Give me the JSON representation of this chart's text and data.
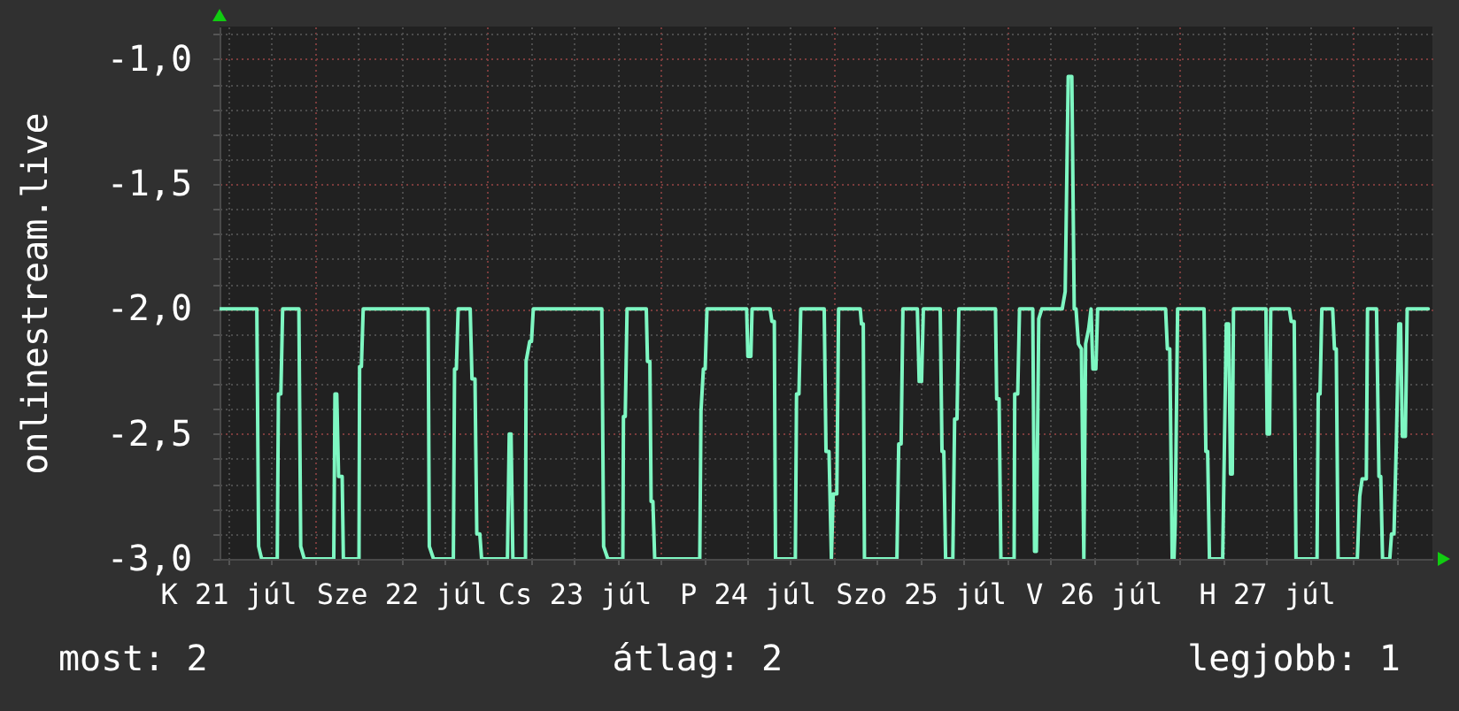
{
  "chart_data": {
    "type": "line",
    "ylabel": "onlinestream.live",
    "annotations": [
      "most: 2",
      "átlag: 2",
      "legjobb: 1"
    ],
    "x": [
      "--07-21T10:55",
      "--07-21T16:00",
      "--07-21T16:15",
      "--07-21T16:40",
      "--07-21T18:50",
      "--07-21T19:00",
      "--07-21T19:20",
      "--07-21T19:35",
      "--07-21T21:50",
      "--07-21T22:05",
      "--07-21T22:35",
      "--07-22T02:40",
      "--07-22T02:50",
      "--07-22T03:05",
      "--07-22T03:20",
      "--07-22T03:50",
      "--07-22T04:00",
      "--07-22T06:10",
      "--07-22T06:15",
      "--07-22T06:30",
      "--07-22T06:45",
      "--07-22T15:45",
      "--07-22T15:55",
      "--07-22T16:30",
      "--07-22T19:15",
      "--07-22T19:25",
      "--07-22T19:40",
      "--07-22T19:55",
      "--07-22T21:35",
      "--07-22T21:50",
      "--07-22T22:15",
      "--07-22T22:30",
      "--07-22T22:55",
      "--07-22T23:10",
      "--07-23T02:45",
      "--07-23T03:00",
      "--07-23T03:15",
      "--07-23T03:30",
      "--07-23T05:15",
      "--07-23T05:20",
      "--07-23T05:50",
      "--07-23T06:05",
      "--07-23T06:20",
      "--07-23T15:50",
      "--07-23T16:05",
      "--07-23T16:40",
      "--07-23T18:45",
      "--07-23T18:50",
      "--07-23T19:05",
      "--07-23T19:20",
      "--07-23T22:00",
      "--07-23T22:10",
      "--07-23T22:30",
      "--07-23T22:40",
      "--07-23T22:55",
      "--07-23T23:10",
      "--07-24T05:25",
      "--07-24T05:35",
      "--07-24T05:55",
      "--07-24T06:10",
      "--07-24T06:25",
      "--07-24T11:55",
      "--07-24T12:05",
      "--07-24T12:30",
      "--07-24T12:40",
      "--07-24T15:10",
      "--07-24T15:25",
      "--07-24T15:45",
      "--07-24T15:55",
      "--07-24T18:40",
      "--07-24T18:50",
      "--07-24T19:10",
      "--07-24T19:25",
      "--07-24T22:40",
      "--07-24T22:55",
      "--07-24T23:20",
      "--07-24T23:40",
      "--07-24T23:55",
      "--07-25T00:25",
      "--07-25T00:40",
      "--07-25T03:40",
      "--07-25T03:50",
      "--07-25T04:05",
      "--07-25T04:15",
      "--07-25T08:45",
      "--07-25T09:00",
      "--07-25T09:20",
      "--07-25T09:35",
      "--07-25T11:35",
      "--07-25T11:50",
      "--07-25T12:10",
      "--07-25T12:25",
      "--07-25T14:45",
      "--07-25T15:00",
      "--07-25T15:15",
      "--07-25T15:30",
      "--07-25T16:30",
      "--07-25T16:45",
      "--07-25T17:05",
      "--07-25T17:20",
      "--07-25T22:25",
      "--07-25T22:35",
      "--07-25T22:55",
      "--07-25T23:10",
      "--07-26T01:00",
      "--07-26T01:05",
      "--07-26T01:30",
      "--07-26T01:45",
      "--07-26T03:35",
      "--07-26T03:50",
      "--07-26T04:05",
      "--07-26T04:25",
      "--07-26T04:50",
      "--07-26T07:40",
      "--07-26T08:05",
      "--07-26T08:30",
      "--07-26T09:00",
      "--07-26T09:20",
      "--07-26T09:35",
      "--07-26T09:55",
      "--07-26T10:20",
      "--07-26T10:40",
      "--07-26T10:55",
      "--07-26T11:20",
      "--07-26T11:40",
      "--07-26T11:55",
      "--07-26T12:20",
      "--07-26T12:35",
      "--07-26T22:00",
      "--07-26T22:15",
      "--07-26T22:35",
      "--07-26T22:55",
      "--07-26T23:10",
      "--07-26T23:20",
      "--07-26T23:40",
      "--07-27T03:20",
      "--07-27T03:35",
      "--07-27T03:50",
      "--07-27T04:05",
      "--07-27T05:55",
      "--07-27T06:10",
      "--07-27T06:25",
      "--07-27T06:45",
      "--07-27T07:00",
      "--07-27T07:15",
      "--07-27T07:25",
      "--07-27T11:55",
      "--07-27T12:05",
      "--07-27T12:25",
      "--07-27T12:35",
      "--07-27T15:10",
      "--07-27T15:25",
      "--07-27T15:50",
      "--07-27T16:05",
      "--07-27T19:00",
      "--07-27T19:10",
      "--07-27T19:25",
      "--07-27T19:40",
      "--07-27T21:10",
      "--07-27T21:25",
      "--07-27T21:40",
      "--07-27T21:55",
      "--07-28T00:35",
      "--07-28T00:55",
      "--07-28T01:15",
      "--07-28T01:50",
      "--07-28T02:00",
      "--07-28T03:15",
      "--07-28T03:35",
      "--07-28T03:50",
      "--07-28T04:05",
      "--07-28T05:05",
      "--07-28T05:20",
      "--07-28T05:40",
      "--07-28T06:00",
      "--07-28T06:20",
      "--07-28T06:35",
      "--07-28T06:50",
      "--07-28T07:15",
      "--07-28T07:30",
      "--07-28T10:25"
    ],
    "series": [
      {
        "color": "#7ef7c2",
        "values": [
          -2,
          -2,
          -2.95,
          -3,
          -3,
          -2.34,
          -2.34,
          -2,
          -2,
          -2.95,
          -3,
          -3,
          -2.34,
          -2.34,
          -2.67,
          -2.67,
          -3,
          -3,
          -2.23,
          -2.23,
          -2,
          -2,
          -2.95,
          -3,
          -3,
          -2.24,
          -2.24,
          -2,
          -2,
          -2.28,
          -2.28,
          -2.9,
          -2.9,
          -3,
          -3,
          -2.5,
          -2.5,
          -3,
          -3,
          -2.21,
          -2.13,
          -2.13,
          -2,
          -2,
          -2.95,
          -3,
          -3,
          -2.43,
          -2.43,
          -2,
          -2,
          -2.21,
          -2.21,
          -2.77,
          -2.77,
          -3,
          -3,
          -2.41,
          -2.24,
          -2.24,
          -2,
          -2,
          -2.19,
          -2.19,
          -2,
          -2,
          -2.05,
          -2.05,
          -3,
          -3,
          -2.34,
          -2.34,
          -2,
          -2,
          -2.57,
          -2.57,
          -3,
          -2.74,
          -2.74,
          -2,
          -2,
          -2.06,
          -2.06,
          -3,
          -3,
          -2.54,
          -2.54,
          -2,
          -2,
          -2.29,
          -2.29,
          -2,
          -2,
          -2.57,
          -2.57,
          -3,
          -3,
          -2.44,
          -2.44,
          -2,
          -2,
          -2.36,
          -2.36,
          -3,
          -3,
          -2.34,
          -2.34,
          -2,
          -2,
          -2.97,
          -2.97,
          -2.04,
          -2,
          -2,
          -1.93,
          -1.07,
          -1.07,
          -2,
          -2,
          -2.14,
          -2.16,
          -3,
          -2.14,
          -2.08,
          -2,
          -2.24,
          -2.24,
          -2,
          -2,
          -2.16,
          -2.16,
          -3,
          -3,
          -2.86,
          -2,
          -2,
          -2.57,
          -2.57,
          -3,
          -3,
          -2.53,
          -2.06,
          -2.06,
          -2.66,
          -2.66,
          -2,
          -2,
          -2.5,
          -2.5,
          -2,
          -2,
          -2.05,
          -2.05,
          -3,
          -3,
          -2.34,
          -2.34,
          -2,
          -2,
          -2.16,
          -2.16,
          -3,
          -3,
          -2.75,
          -2.68,
          -2.68,
          -2,
          -2,
          -2.67,
          -2.67,
          -3,
          -3,
          -2.9,
          -2.9,
          -2.53,
          -2.06,
          -2.06,
          -2.51,
          -2.51,
          -2,
          -2
        ]
      }
    ],
    "xlim": [
      "--07-21T10:50",
      "--07-28T11:00"
    ],
    "xticks": [
      {
        "value": "--07-21T12:00",
        "label": "K 21 júl"
      },
      {
        "value": "--07-21T18:00",
        "label": null
      },
      {
        "value": "--07-22T00:00",
        "label": null
      },
      {
        "value": "--07-22T06:00",
        "label": null
      },
      {
        "value": "--07-22T12:00",
        "label": "Sze 22 júl"
      },
      {
        "value": "--07-22T18:00",
        "label": null
      },
      {
        "value": "--07-23T00:00",
        "label": null
      },
      {
        "value": "--07-23T06:00",
        "label": null
      },
      {
        "value": "--07-23T12:00",
        "label": "Cs 23 júl"
      },
      {
        "value": "--07-23T18:00",
        "label": null
      },
      {
        "value": "--07-24T00:00",
        "label": null
      },
      {
        "value": "--07-24T06:00",
        "label": null
      },
      {
        "value": "--07-24T12:00",
        "label": "P 24 júl"
      },
      {
        "value": "--07-24T18:00",
        "label": null
      },
      {
        "value": "--07-25T00:00",
        "label": null
      },
      {
        "value": "--07-25T06:00",
        "label": null
      },
      {
        "value": "--07-25T12:00",
        "label": "Szo 25 júl"
      },
      {
        "value": "--07-25T18:00",
        "label": null
      },
      {
        "value": "--07-26T00:00",
        "label": null
      },
      {
        "value": "--07-26T06:00",
        "label": null
      },
      {
        "value": "--07-26T12:00",
        "label": "V 26 júl"
      },
      {
        "value": "--07-26T18:00",
        "label": null
      },
      {
        "value": "--07-27T00:00",
        "label": null
      },
      {
        "value": "--07-27T06:00",
        "label": null
      },
      {
        "value": "--07-27T12:00",
        "label": "H 27 júl"
      },
      {
        "value": "--07-27T18:00",
        "label": null
      },
      {
        "value": "--07-28T00:00",
        "label": null
      },
      {
        "value": "--07-28T06:00",
        "label": null
      }
    ],
    "ylim": [
      -3,
      -0.87
    ],
    "yticks": [
      {
        "value": -3,
        "label": "-3,0"
      },
      {
        "value": -2.9,
        "label": null
      },
      {
        "value": -2.8,
        "label": null
      },
      {
        "value": -2.7,
        "label": null
      },
      {
        "value": -2.6,
        "label": null
      },
      {
        "value": -2.5,
        "label": "-2,5"
      },
      {
        "value": -2.4,
        "label": null
      },
      {
        "value": -2.3,
        "label": null
      },
      {
        "value": -2.2,
        "label": null
      },
      {
        "value": -2.1,
        "label": null
      },
      {
        "value": -2,
        "label": "-2,0"
      },
      {
        "value": -1.9,
        "label": null
      },
      {
        "value": -1.8,
        "label": null
      },
      {
        "value": -1.7,
        "label": null
      },
      {
        "value": -1.6,
        "label": null
      },
      {
        "value": -1.5,
        "label": "-1,5"
      },
      {
        "value": -1.4,
        "label": null
      },
      {
        "value": -1.3,
        "label": null
      },
      {
        "value": -1.2,
        "label": null
      },
      {
        "value": -1.1,
        "label": null
      },
      {
        "value": -1,
        "label": "-1,0"
      },
      {
        "value": -0.9,
        "label": null
      }
    ],
    "grid": true
  }
}
